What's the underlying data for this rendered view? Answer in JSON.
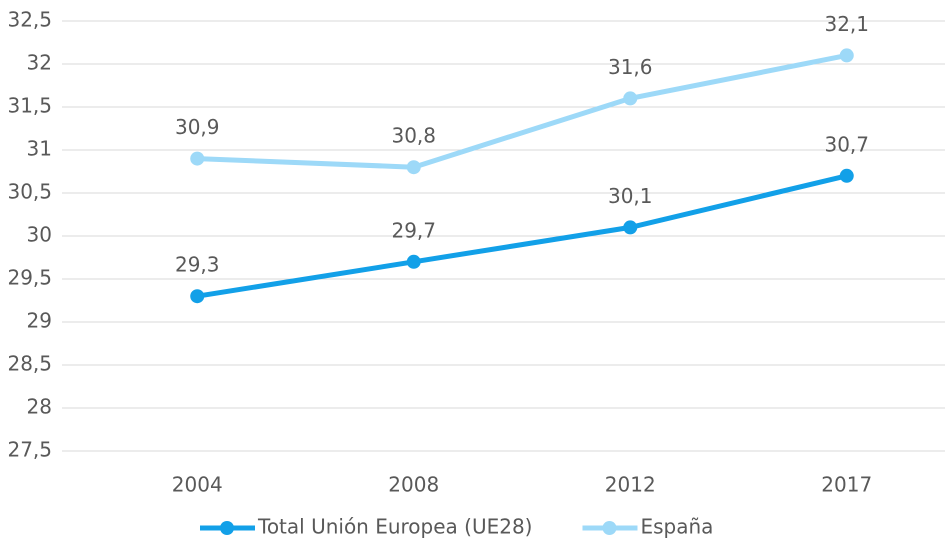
{
  "chart_data": {
    "type": "line",
    "categories": [
      "2004",
      "2008",
      "2012",
      "2017"
    ],
    "series": [
      {
        "name": "Total Unión Europea (UE28)",
        "color": "#12a0e8",
        "values": [
          29.3,
          29.7,
          30.1,
          30.7
        ],
        "value_labels": [
          "29,3",
          "29,7",
          "30,1",
          "30,7"
        ]
      },
      {
        "name": "España",
        "color": "#9dd9f8",
        "values": [
          30.9,
          30.8,
          31.6,
          32.1
        ],
        "value_labels": [
          "30,9",
          "30,8",
          "31,6",
          "32,1"
        ]
      }
    ],
    "ylim": [
      27.5,
      32.5
    ],
    "yticks": [
      {
        "value": 27.5,
        "label": "27,5"
      },
      28,
      {
        "value": 28.5,
        "label": "28,5"
      },
      29,
      {
        "value": 29.5,
        "label": "29,5"
      },
      30,
      {
        "value": 30.5,
        "label": "30,5"
      },
      31,
      {
        "value": 31.5,
        "label": "31,5"
      },
      32,
      {
        "value": 32.5,
        "label": "32,5"
      }
    ],
    "grid": true,
    "legend": "bottom"
  }
}
